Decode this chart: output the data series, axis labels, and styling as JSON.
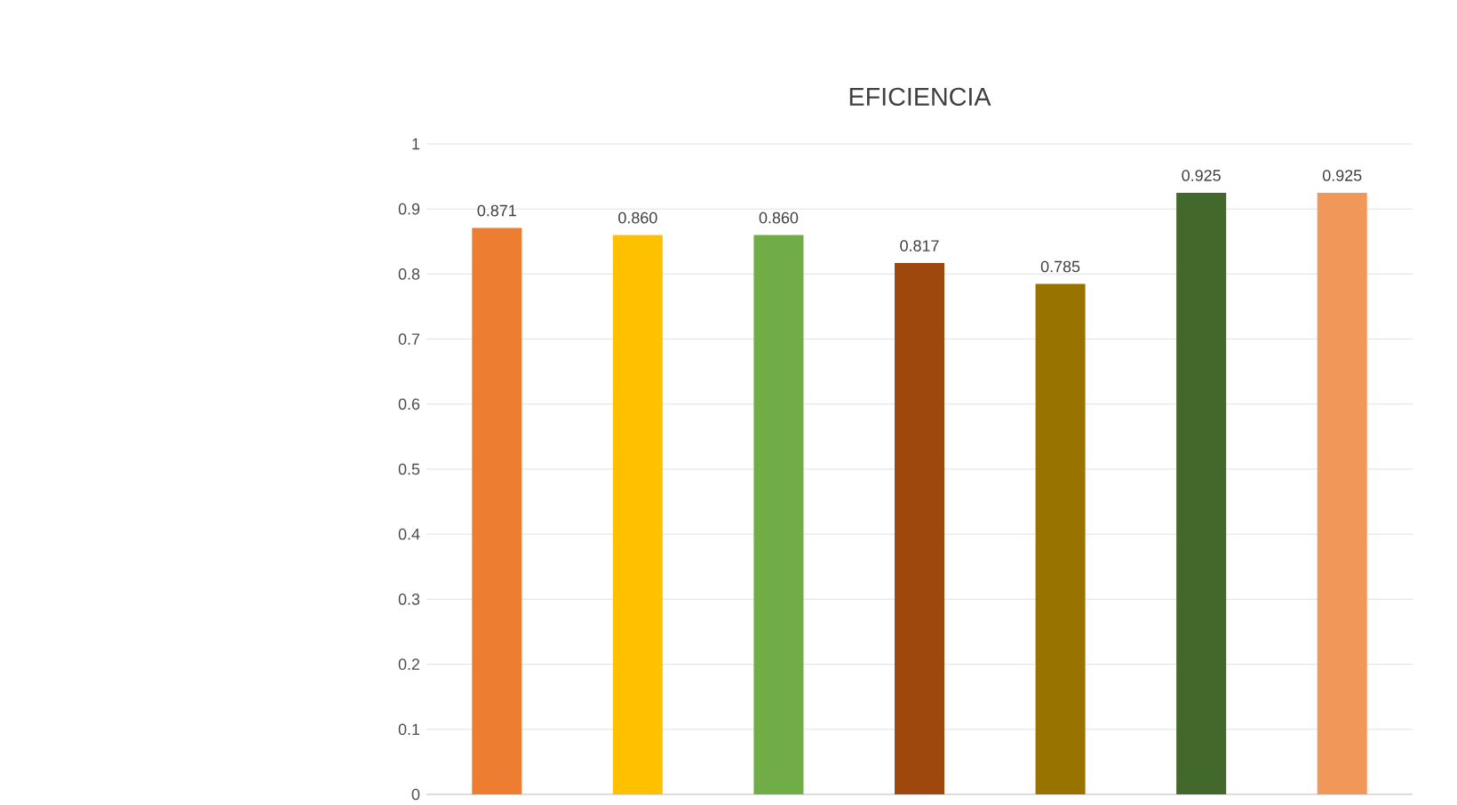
{
  "chart_data": {
    "type": "bar",
    "title": "EFICIENCIA",
    "categories": [
      null,
      null,
      null,
      null,
      null,
      null,
      null
    ],
    "values": [
      0.871,
      0.86,
      0.86,
      0.817,
      0.785,
      0.925,
      0.925
    ],
    "value_labels": [
      "0.871",
      "0.860",
      "0.860",
      "0.817",
      "0.785",
      "0.925",
      "0.925"
    ],
    "colors": [
      "#ed7d31",
      "#ffc000",
      "#70ad47",
      "#9e480e",
      "#997300",
      "#43682b",
      "#f1975a"
    ],
    "ylim": [
      0,
      1
    ],
    "yticks": [
      0,
      0.1,
      0.2,
      0.3,
      0.4,
      0.5,
      0.6,
      0.7,
      0.8,
      0.9,
      1
    ],
    "grid": "y"
  }
}
